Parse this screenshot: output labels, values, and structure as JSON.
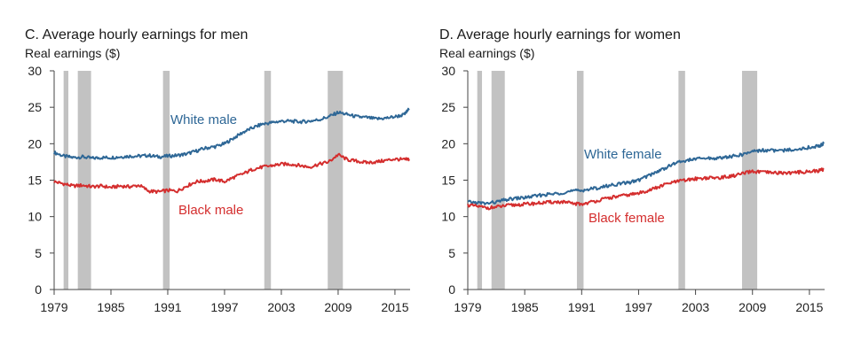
{
  "colors": {
    "white_series": "#2e6796",
    "black_series": "#d42e2e",
    "recession": "#c2c2c2",
    "axis": "#444444"
  },
  "chart_data": [
    {
      "type": "line",
      "title": "C. Average hourly earnings for men",
      "ylabel": "Real earnings ($)",
      "ylim": [
        0,
        30
      ],
      "xlim": [
        1979,
        2016.6
      ],
      "yticks": [
        0,
        5,
        10,
        15,
        20,
        25,
        30
      ],
      "xticks": [
        1979,
        1985,
        1991,
        1997,
        2003,
        2009,
        2015
      ],
      "recessions": [
        [
          1980.0,
          1980.5
        ],
        [
          1981.5,
          1982.9
        ],
        [
          1990.5,
          1991.2
        ],
        [
          2001.2,
          2001.9
        ],
        [
          2007.9,
          2009.5
        ]
      ],
      "series": [
        {
          "name": "White male",
          "x": [
            1979,
            1980,
            1981,
            1982,
            1983,
            1984,
            1985,
            1986,
            1987,
            1988,
            1989,
            1990,
            1991,
            1992,
            1993,
            1994,
            1995,
            1996,
            1997,
            1998,
            1999,
            2000,
            2001,
            2002,
            2003,
            2004,
            2005,
            2006,
            2007,
            2008,
            2009,
            2010,
            2011,
            2012,
            2013,
            2014,
            2015,
            2016,
            2016.5
          ],
          "values": [
            18.8,
            18.3,
            18.1,
            18.2,
            18.0,
            18.1,
            18.1,
            18.2,
            18.3,
            18.3,
            18.4,
            18.2,
            18.3,
            18.4,
            18.6,
            19.0,
            19.4,
            19.6,
            20.0,
            20.8,
            21.6,
            22.2,
            22.7,
            22.9,
            23.1,
            23.1,
            23.0,
            23.1,
            23.3,
            23.7,
            24.3,
            24.0,
            23.7,
            23.6,
            23.4,
            23.5,
            23.7,
            24.0,
            24.8
          ]
        },
        {
          "name": "Black male",
          "x": [
            1979,
            1980,
            1981,
            1982,
            1983,
            1984,
            1985,
            1986,
            1987,
            1988,
            1989,
            1990,
            1991,
            1992,
            1993,
            1994,
            1995,
            1996,
            1997,
            1998,
            1999,
            2000,
            2001,
            2002,
            2003,
            2004,
            2005,
            2006,
            2007,
            2008,
            2009,
            2010,
            2011,
            2012,
            2013,
            2014,
            2015,
            2016,
            2016.5
          ],
          "values": [
            14.8,
            14.5,
            14.2,
            14.3,
            14.1,
            14.2,
            14.0,
            14.2,
            14.1,
            14.3,
            13.5,
            13.4,
            13.6,
            13.5,
            14.2,
            14.8,
            14.9,
            15.1,
            14.8,
            15.4,
            15.9,
            16.5,
            16.8,
            17.0,
            17.2,
            17.2,
            17.0,
            16.8,
            17.2,
            17.5,
            18.5,
            17.8,
            17.6,
            17.4,
            17.5,
            17.7,
            17.9,
            17.8,
            17.9
          ]
        }
      ]
    },
    {
      "type": "line",
      "title": "D. Average hourly earnings for women",
      "ylabel": "Real earnings ($)",
      "ylim": [
        0,
        30
      ],
      "xlim": [
        1979,
        2016.6
      ],
      "yticks": [
        0,
        5,
        10,
        15,
        20,
        25,
        30
      ],
      "xticks": [
        1979,
        1985,
        1991,
        1997,
        2003,
        2009,
        2015
      ],
      "recessions": [
        [
          1980.0,
          1980.5
        ],
        [
          1981.5,
          1982.9
        ],
        [
          1990.5,
          1991.2
        ],
        [
          2001.2,
          2001.9
        ],
        [
          2007.9,
          2009.5
        ]
      ],
      "series": [
        {
          "name": "White female",
          "x": [
            1979,
            1980,
            1981,
            1982,
            1983,
            1984,
            1985,
            1986,
            1987,
            1988,
            1989,
            1990,
            1991,
            1992,
            1993,
            1994,
            1995,
            1996,
            1997,
            1998,
            1999,
            2000,
            2001,
            2002,
            2003,
            2004,
            2005,
            2006,
            2007,
            2008,
            2009,
            2010,
            2011,
            2012,
            2013,
            2014,
            2015,
            2016,
            2016.5
          ],
          "values": [
            12.0,
            11.9,
            11.8,
            12.0,
            12.3,
            12.5,
            12.6,
            12.8,
            13.0,
            13.1,
            13.3,
            13.5,
            13.6,
            13.8,
            14.0,
            14.3,
            14.5,
            14.7,
            15.0,
            15.6,
            16.2,
            16.8,
            17.4,
            17.7,
            17.9,
            18.0,
            18.0,
            18.1,
            18.3,
            18.5,
            19.0,
            19.1,
            19.1,
            19.0,
            19.2,
            19.3,
            19.5,
            19.7,
            20.0
          ]
        },
        {
          "name": "Black female",
          "x": [
            1979,
            1980,
            1981,
            1982,
            1983,
            1984,
            1985,
            1986,
            1987,
            1988,
            1989,
            1990,
            1991,
            1992,
            1993,
            1994,
            1995,
            1996,
            1997,
            1998,
            1999,
            2000,
            2001,
            2002,
            2003,
            2004,
            2005,
            2006,
            2007,
            2008,
            2009,
            2010,
            2011,
            2012,
            2013,
            2014,
            2015,
            2016,
            2016.5
          ],
          "values": [
            11.6,
            11.4,
            11.2,
            11.3,
            11.5,
            11.6,
            11.7,
            11.8,
            11.9,
            12.0,
            12.0,
            11.8,
            11.7,
            12.0,
            12.3,
            12.6,
            12.8,
            13.0,
            13.2,
            13.6,
            14.0,
            14.5,
            14.8,
            15.0,
            15.2,
            15.3,
            15.3,
            15.4,
            15.6,
            15.9,
            16.2,
            16.1,
            16.0,
            16.0,
            16.0,
            16.1,
            16.2,
            16.3,
            16.5
          ]
        }
      ]
    }
  ]
}
